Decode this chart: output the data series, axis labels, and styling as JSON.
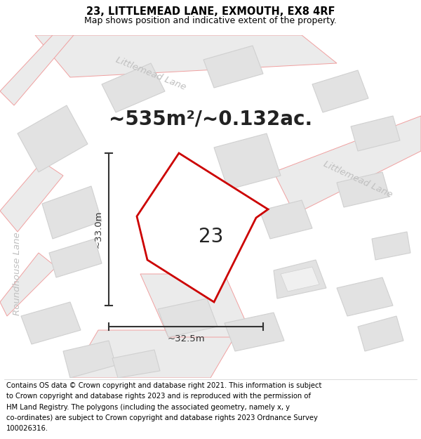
{
  "title_line1": "23, LITTLEMEAD LANE, EXMOUTH, EX8 4RF",
  "title_line2": "Map shows position and indicative extent of the property.",
  "area_text": "~535m²/~0.132ac.",
  "label_number": "23",
  "dim_height": "~33.0m",
  "dim_width": "~32.5m",
  "street_littlemead_top": "Littlemead Lane",
  "street_littlemead_right": "Littlemead Lane",
  "street_roundhouse": "Roundhouse Lane",
  "footer_lines": [
    "Contains OS data © Crown copyright and database right 2021. This information is subject",
    "to Crown copyright and database rights 2023 and is reproduced with the permission of",
    "HM Land Registry. The polygons (including the associated geometry, namely x, y",
    "co-ordinates) are subject to Crown copyright and database rights 2023 Ordnance Survey",
    "100026316."
  ],
  "map_bg": "#f7f7f7",
  "road_fill": "#ebebeb",
  "road_stroke": "#f0a0a0",
  "building_fill": "#e2e2e2",
  "building_stroke": "#d0d0d0",
  "highlight_color": "#cc0000",
  "dim_color": "#333333",
  "street_color": "#c0c0c0",
  "text_color": "#222222",
  "title_fontsize": 10.5,
  "subtitle_fontsize": 9,
  "area_fontsize": 20,
  "label_fontsize": 20,
  "dim_fontsize": 9.5,
  "street_fontsize": 9.5,
  "footer_fontsize": 7.2
}
